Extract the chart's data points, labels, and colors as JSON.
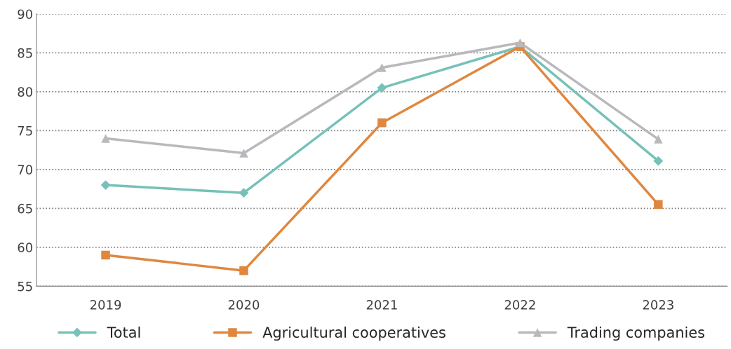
{
  "chart_data": {
    "type": "line",
    "categories": [
      "2019",
      "2020",
      "2021",
      "2022",
      "2023"
    ],
    "series": [
      {
        "name": "Total",
        "color": "#76c1b8",
        "marker": "diamond",
        "values": [
          68.0,
          67.0,
          80.5,
          85.8,
          71.1
        ]
      },
      {
        "name": "Agricultural cooperatives",
        "color": "#df873f",
        "marker": "square",
        "values": [
          59.0,
          57.0,
          76.0,
          85.8,
          65.5
        ]
      },
      {
        "name": "Trading companies",
        "color": "#b9b9bd",
        "marker": "triangle",
        "values": [
          74.0,
          72.1,
          83.1,
          86.3,
          73.9
        ]
      }
    ],
    "ylim": [
      55,
      90
    ],
    "yticks": [
      55,
      60,
      65,
      70,
      75,
      80,
      85,
      90
    ],
    "grid": "y",
    "legend": "bottom",
    "line_style": "solid"
  }
}
